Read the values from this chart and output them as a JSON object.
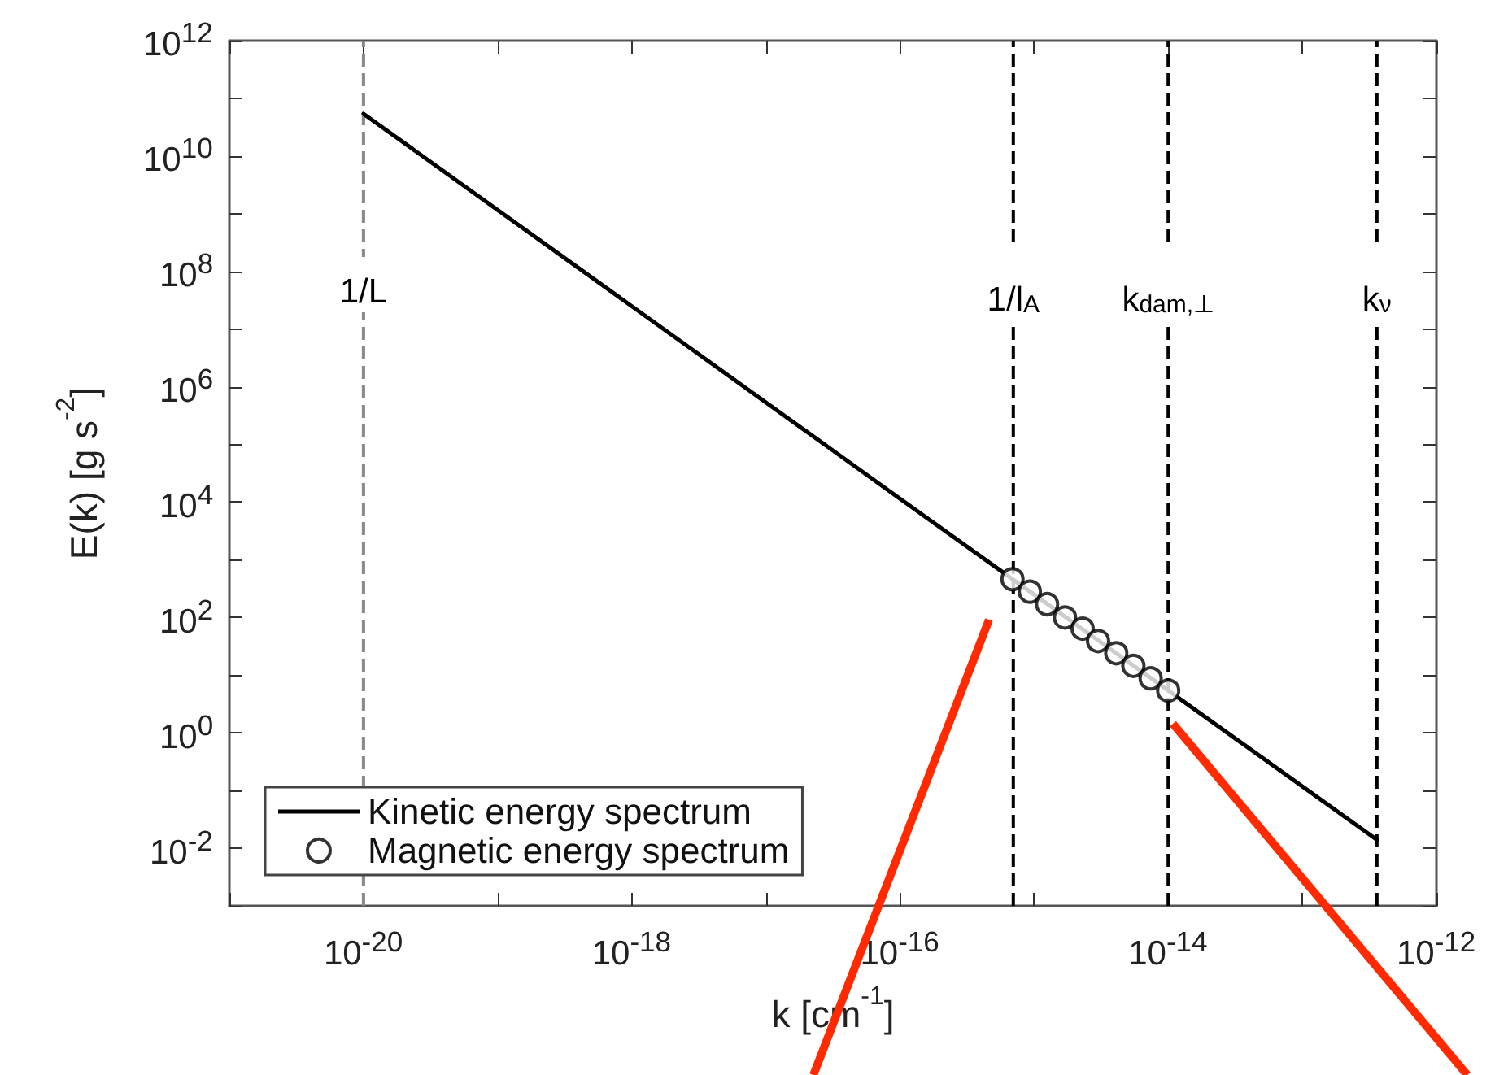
{
  "chart_data": {
    "type": "line",
    "xlabel": "k [cm$^{-1}$]",
    "ylabel": "E(k) [g s$^{-2}$]",
    "log": "xy",
    "xlim": [
      1e-21,
      1e-12
    ],
    "ylim": [
      0.001,
      1000000000000.0
    ],
    "xticks": [
      {
        "value": 1e-21,
        "label": null
      },
      {
        "value": 1e-20,
        "label": "10$^{-20}$"
      },
      {
        "value": 1e-19,
        "label": null
      },
      {
        "value": 1e-18,
        "label": "10$^{-18}$"
      },
      {
        "value": 1e-17,
        "label": null
      },
      {
        "value": 1e-16,
        "label": "10$^{-16}$"
      },
      {
        "value": 1e-15,
        "label": null
      },
      {
        "value": 1e-14,
        "label": "10$^{-14}$"
      },
      {
        "value": 1e-13,
        "label": null
      },
      {
        "value": 1e-12,
        "label": "10$^{-12}$"
      }
    ],
    "yticks": [
      {
        "value": 0.001,
        "label": null
      },
      {
        "value": 0.01,
        "label": "10$^{-2}$"
      },
      {
        "value": 0.1,
        "label": null
      },
      {
        "value": 1,
        "label": "10$^{0}$"
      },
      {
        "value": 10,
        "label": null
      },
      {
        "value": 100,
        "label": "10$^{2}$"
      },
      {
        "value": 1000,
        "label": null
      },
      {
        "value": 10000,
        "label": "10$^{4}$"
      },
      {
        "value": 100000,
        "label": null
      },
      {
        "value": 1000000,
        "label": "10$^{6}$"
      },
      {
        "value": 10000000,
        "label": null
      },
      {
        "value": 100000000,
        "label": "10$^{8}$"
      },
      {
        "value": 1000000000,
        "label": null
      },
      {
        "value": 10000000000,
        "label": "10$^{10}$"
      },
      {
        "value": 100000000000,
        "label": null
      },
      {
        "value": 1000000000000,
        "label": "10$^{12}$"
      }
    ],
    "grid": false,
    "legend": "bottom left",
    "series": [
      {
        "name": "Kinetic energy spectrum",
        "type": "line",
        "color": "#000000",
        "marker": "none",
        "line_style": "solid",
        "x": [
          1e-20,
          1e-16,
          3.6e-13
        ],
        "values": [
          54000000000.0,
          11500,
          0.014
        ]
      },
      {
        "name": "Magnetic energy spectrum",
        "type": "scatter",
        "color": "#000000",
        "marker": "circle",
        "x": [
          6.9e-16,
          9.3e-16,
          1.25e-15,
          1.7e-15,
          2.3e-15,
          3e-15,
          4.1e-15,
          5.5e-15,
          7.4e-15,
          1e-14
        ],
        "values": [
          460,
          280,
          170,
          100,
          64,
          39,
          24,
          14.5,
          8.8,
          5.4
        ]
      }
    ],
    "ref_lines": [
      {
        "axis": "x",
        "value": 1e-20,
        "label": "1/L",
        "color": "#888888",
        "line_style": "dashed"
      },
      {
        "axis": "x",
        "value": 7e-16,
        "label": "1/l$_{A}$",
        "color": "#000000",
        "line_style": "dashed"
      },
      {
        "axis": "x",
        "value": 1e-14,
        "label": "k$_{dam,⊥}$",
        "color": "#000000",
        "line_style": "dashed"
      },
      {
        "axis": "x",
        "value": 3.6e-13,
        "label": "k$_{ν}$",
        "color": "#000000",
        "line_style": "dashed"
      }
    ]
  }
}
